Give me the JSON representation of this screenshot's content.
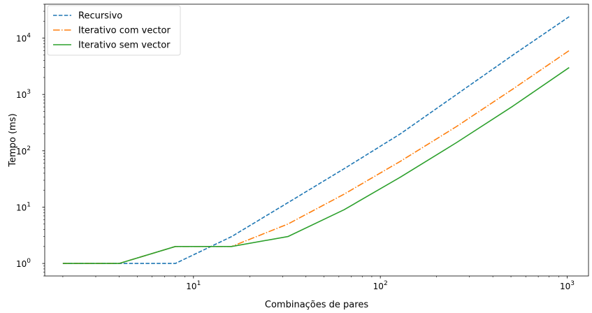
{
  "chart_data": {
    "type": "line",
    "title": "",
    "xlabel": "Combinações de pares",
    "ylabel": "Tempo (ms)",
    "xscale": "log",
    "yscale": "log",
    "xlim": [
      1.6,
      1300
    ],
    "ylim": [
      0.6,
      40000
    ],
    "x_ticks": [
      {
        "value": 10,
        "base": "10",
        "exp": "1"
      },
      {
        "value": 100,
        "base": "10",
        "exp": "2"
      },
      {
        "value": 1000,
        "base": "10",
        "exp": "3"
      }
    ],
    "y_ticks": [
      {
        "value": 1,
        "base": "10",
        "exp": "0"
      },
      {
        "value": 10,
        "base": "10",
        "exp": "1"
      },
      {
        "value": 100,
        "base": "10",
        "exp": "2"
      },
      {
        "value": 1000,
        "base": "10",
        "exp": "3"
      },
      {
        "value": 10000,
        "base": "10",
        "exp": "4"
      }
    ],
    "grid": false,
    "legend_position": "top-left",
    "x": [
      2,
      4,
      8,
      16,
      32,
      64,
      128,
      256,
      512,
      1024
    ],
    "series": [
      {
        "name": "Recursivo",
        "color": "#1f77b4",
        "dash": "dashed",
        "values": [
          1,
          1,
          1,
          3,
          12,
          48,
          200,
          1000,
          5000,
          24000
        ]
      },
      {
        "name": "Iterativo com vector",
        "color": "#ff7f0e",
        "dash": "dashdot",
        "values": [
          1,
          1,
          2,
          2,
          5,
          17,
          65,
          270,
          1250,
          6000
        ]
      },
      {
        "name": "Iterativo sem vector",
        "color": "#2ca02c",
        "dash": "solid",
        "values": [
          1,
          1,
          2,
          2,
          3,
          9,
          34,
          140,
          620,
          3000
        ]
      }
    ]
  }
}
